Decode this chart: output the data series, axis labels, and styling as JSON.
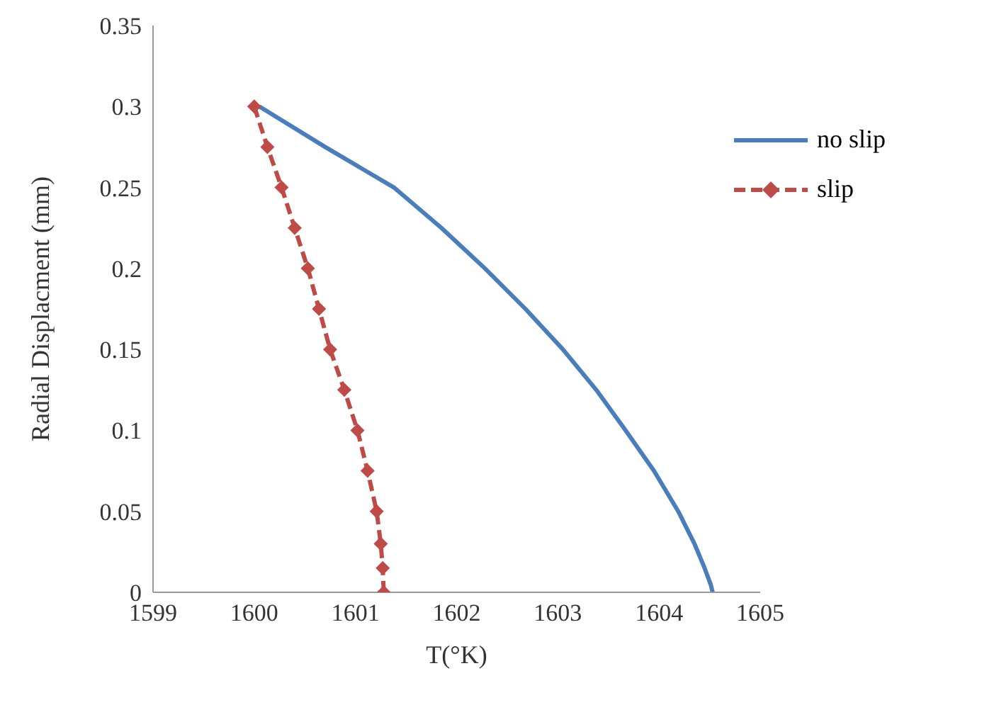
{
  "chart_data": {
    "type": "line",
    "xlabel": "T(°K)",
    "ylabel": "Radial Displacment (mm)",
    "xlim": [
      1599,
      1605
    ],
    "xticks": [
      1599,
      1600,
      1601,
      1602,
      1603,
      1604,
      1605
    ],
    "ylim": [
      0,
      0.35
    ],
    "yticks": [
      0,
      0.05,
      0.1,
      0.15,
      0.2,
      0.25,
      0.3,
      0.35
    ],
    "grid": false,
    "legend": "top right",
    "series": [
      {
        "name": "no slip",
        "color": "#4a7ebb",
        "marker": "none",
        "line_style": "solid",
        "x": [
          1600.05,
          1600.7,
          1601.38,
          1601.85,
          1602.28,
          1602.68,
          1603.05,
          1603.38,
          1603.67,
          1603.95,
          1604.19,
          1604.35,
          1604.45,
          1604.51,
          1604.53
        ],
        "values": [
          0.3,
          0.275,
          0.25,
          0.225,
          0.2,
          0.175,
          0.15,
          0.125,
          0.1,
          0.075,
          0.05,
          0.03,
          0.015,
          0.005,
          0
        ]
      },
      {
        "name": "slip",
        "color": "#be4b48",
        "marker": "diamond",
        "line_style": "dashed",
        "x": [
          1600,
          1600.13,
          1600.27,
          1600.4,
          1600.53,
          1600.64,
          1600.75,
          1600.89,
          1601.02,
          1601.12,
          1601.21,
          1601.25,
          1601.27,
          1601.28
        ],
        "values": [
          0.3,
          0.275,
          0.25,
          0.225,
          0.2,
          0.175,
          0.15,
          0.125,
          0.1,
          0.075,
          0.05,
          0.03,
          0.015,
          0
        ]
      }
    ]
  }
}
